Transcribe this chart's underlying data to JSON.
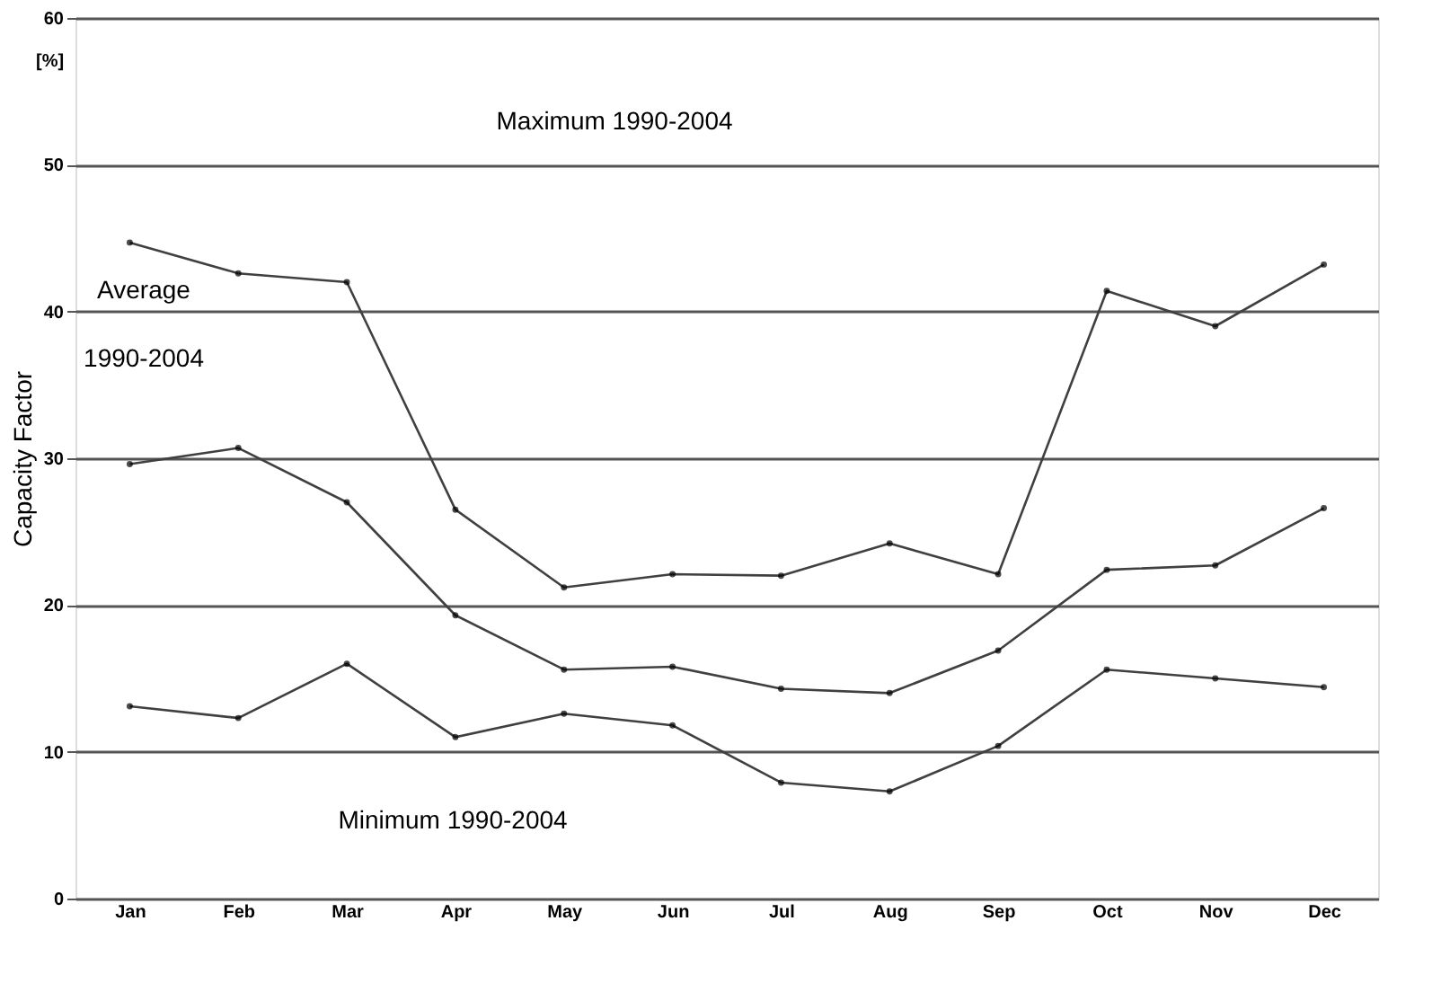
{
  "chart_data": {
    "type": "line",
    "ylabel": "Capacity Factor",
    "categories": [
      "Jan",
      "Feb",
      "Mar",
      "Apr",
      "May",
      "Jun",
      "Jul",
      "Aug",
      "Sep",
      "Oct",
      "Nov",
      "Dec"
    ],
    "series": [
      {
        "color": "#404040",
        "values": [
          44.7,
          42.6,
          42.0,
          26.5,
          21.2,
          22.1,
          22.0,
          24.2,
          22.1,
          41.4,
          39.0,
          43.2
        ]
      },
      {
        "color": "#404040",
        "values": [
          29.6,
          30.7,
          27.0,
          19.3,
          15.6,
          15.8,
          14.3,
          14.0,
          16.9,
          22.4,
          22.7,
          26.6
        ]
      },
      {
        "color": "#404040",
        "values": [
          13.1,
          12.3,
          16.0,
          11.0,
          12.6,
          11.8,
          7.9,
          7.3,
          10.4,
          15.6,
          15.0,
          14.4
        ]
      }
    ],
    "ylim": [
      0,
      60
    ],
    "yticks": [
      0,
      10,
      20,
      30,
      40,
      50,
      60
    ],
    "grid": "y",
    "marker": "circle",
    "line_style": "solid",
    "annotations": [
      "[%]",
      "Maximum 1990-2004",
      "Average 1990-2004",
      "Minimum 1990-2004"
    ]
  }
}
